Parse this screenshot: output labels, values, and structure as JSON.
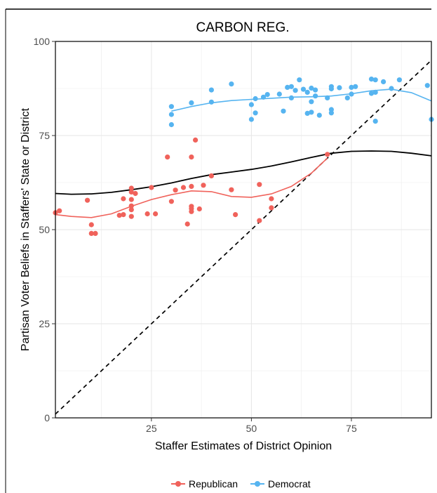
{
  "chart_data": {
    "type": "scatter",
    "title": "CARBON REG.",
    "xlabel": "Staffer Estimates of District Opinion",
    "ylabel": "Partisan Voter Beliefs in Staffers' State or District",
    "xlim": [
      1,
      95
    ],
    "ylim": [
      0,
      100
    ],
    "xticks": [
      25,
      50,
      75
    ],
    "yticks": [
      0,
      25,
      50,
      75,
      100
    ],
    "grid": true,
    "legend_position": "bottom",
    "reference_line": {
      "style": "dashed",
      "slope": 1,
      "intercept": 0
    },
    "series": [
      {
        "name": "Republican",
        "color": "#F0625B",
        "points": [
          [
            2,
            55
          ],
          [
            1,
            54.5
          ],
          [
            9,
            57.8
          ],
          [
            10,
            51.3
          ],
          [
            10,
            49
          ],
          [
            11,
            49
          ],
          [
            17,
            53.8
          ],
          [
            18,
            58.2
          ],
          [
            18,
            54
          ],
          [
            20,
            61
          ],
          [
            20,
            60
          ],
          [
            20,
            58
          ],
          [
            20,
            56.3
          ],
          [
            20,
            55.3
          ],
          [
            20,
            53.5
          ],
          [
            21,
            59.6
          ],
          [
            24,
            54.2
          ],
          [
            25,
            61.2
          ],
          [
            26,
            54.2
          ],
          [
            29,
            69.3
          ],
          [
            30,
            57.5
          ],
          [
            31,
            60.5
          ],
          [
            33,
            61.2
          ],
          [
            34,
            51.5
          ],
          [
            35,
            69.3
          ],
          [
            35,
            61.5
          ],
          [
            35,
            56.2
          ],
          [
            35,
            55.6
          ],
          [
            35,
            54.8
          ],
          [
            36,
            73.8
          ],
          [
            37,
            55.5
          ],
          [
            38,
            61.8
          ],
          [
            40,
            64.3
          ],
          [
            45,
            60.6
          ],
          [
            46,
            54
          ],
          [
            52,
            62
          ],
          [
            52,
            52.4
          ],
          [
            55,
            58.2
          ],
          [
            55,
            55.8
          ],
          [
            69,
            70
          ]
        ],
        "smooth": [
          [
            1,
            54
          ],
          [
            5,
            53.5
          ],
          [
            10,
            53.2
          ],
          [
            15,
            54.2
          ],
          [
            20,
            56.2
          ],
          [
            25,
            58
          ],
          [
            30,
            59.3
          ],
          [
            35,
            60.3
          ],
          [
            40,
            60.1
          ],
          [
            45,
            58.8
          ],
          [
            50,
            58.6
          ],
          [
            55,
            59.5
          ],
          [
            60,
            61.5
          ],
          [
            65,
            65
          ],
          [
            69,
            69
          ]
        ]
      },
      {
        "name": "Democrat",
        "color": "#56B4F0",
        "points": [
          [
            30,
            82.7
          ],
          [
            30,
            80.6
          ],
          [
            30,
            77.9
          ],
          [
            35,
            83.7
          ],
          [
            40,
            87.1
          ],
          [
            40,
            83.9
          ],
          [
            45,
            88.7
          ],
          [
            50,
            83.2
          ],
          [
            50,
            79.3
          ],
          [
            51,
            84.8
          ],
          [
            51,
            81
          ],
          [
            53,
            85.2
          ],
          [
            54,
            85.9
          ],
          [
            57,
            86
          ],
          [
            58,
            81.5
          ],
          [
            59,
            87.8
          ],
          [
            60,
            88
          ],
          [
            60,
            85
          ],
          [
            61,
            87
          ],
          [
            62,
            89.8
          ],
          [
            63,
            87.3
          ],
          [
            64,
            86.5
          ],
          [
            64,
            80.9
          ],
          [
            65,
            87.6
          ],
          [
            65,
            81.2
          ],
          [
            65,
            84
          ],
          [
            66,
            85.5
          ],
          [
            66,
            87.1
          ],
          [
            67,
            80.4
          ],
          [
            69,
            85
          ],
          [
            70,
            81.9
          ],
          [
            70,
            81
          ],
          [
            70,
            88
          ],
          [
            70,
            87.4
          ],
          [
            72,
            87.7
          ],
          [
            74,
            85
          ],
          [
            75,
            86
          ],
          [
            75,
            87.8
          ],
          [
            76,
            88
          ],
          [
            80,
            90
          ],
          [
            80,
            86.2
          ],
          [
            81,
            89.8
          ],
          [
            81,
            86.5
          ],
          [
            81,
            78.8
          ],
          [
            83,
            89.3
          ],
          [
            85,
            87.5
          ],
          [
            87,
            89.8
          ],
          [
            94,
            88.3
          ],
          [
            95,
            79.3
          ]
        ],
        "smooth": [
          [
            30,
            81.5
          ],
          [
            35,
            82.7
          ],
          [
            40,
            83.7
          ],
          [
            45,
            84.3
          ],
          [
            50,
            84.6
          ],
          [
            55,
            84.9
          ],
          [
            60,
            85.2
          ],
          [
            65,
            85.3
          ],
          [
            70,
            85.5
          ],
          [
            75,
            86.1
          ],
          [
            80,
            86.9
          ],
          [
            85,
            87.3
          ],
          [
            90,
            86.4
          ],
          [
            95,
            84.2
          ]
        ]
      },
      {
        "name": "",
        "color": "#000000",
        "smooth": [
          [
            1,
            59.6
          ],
          [
            5,
            59.4
          ],
          [
            10,
            59.5
          ],
          [
            15,
            59.9
          ],
          [
            20,
            60.6
          ],
          [
            25,
            61.4
          ],
          [
            30,
            62.4
          ],
          [
            35,
            63.6
          ],
          [
            40,
            64.6
          ],
          [
            45,
            65.3
          ],
          [
            50,
            66
          ],
          [
            55,
            66.9
          ],
          [
            60,
            68
          ],
          [
            65,
            69.2
          ],
          [
            70,
            70.3
          ],
          [
            75,
            70.8
          ],
          [
            80,
            70.9
          ],
          [
            85,
            70.8
          ],
          [
            90,
            70.3
          ],
          [
            95,
            69.6
          ]
        ]
      }
    ]
  }
}
